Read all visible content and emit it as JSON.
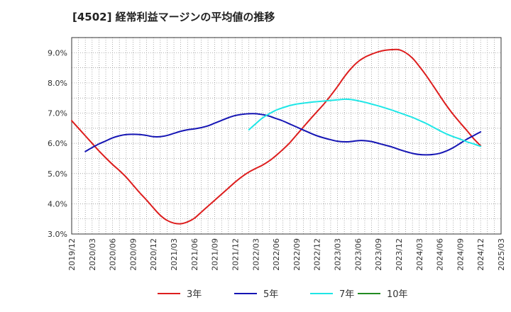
{
  "chart_data": {
    "type": "line",
    "title": "[4502]  経常利益マージンの平均値の推移",
    "y_ticks": [
      "3.0%",
      "4.0%",
      "5.0%",
      "6.0%",
      "7.0%",
      "8.0%",
      "9.0%"
    ],
    "ylim": [
      3.0,
      9.5
    ],
    "x_ticks": [
      "2019/12",
      "2020/03",
      "2020/06",
      "2020/09",
      "2020/12",
      "2021/03",
      "2021/06",
      "2021/09",
      "2021/12",
      "2022/03",
      "2022/06",
      "2022/09",
      "2022/12",
      "2023/03",
      "2023/06",
      "2023/09",
      "2023/12",
      "2024/03",
      "2024/06",
      "2024/09",
      "2024/12",
      "2025/03"
    ],
    "xlim": [
      "2019/12",
      "2025/03"
    ],
    "grid": true,
    "legend_position": "bottom",
    "series": [
      {
        "name": "3年",
        "color": "#dd1e1e",
        "points": [
          [
            "2019/12",
            6.75
          ],
          [
            "2020/01",
            6.5
          ],
          [
            "2020/02",
            6.25
          ],
          [
            "2020/03",
            6.0
          ],
          [
            "2020/04",
            5.75
          ],
          [
            "2020/05",
            5.52
          ],
          [
            "2020/06",
            5.3
          ],
          [
            "2020/07",
            5.1
          ],
          [
            "2020/08",
            4.88
          ],
          [
            "2020/09",
            4.62
          ],
          [
            "2020/10",
            4.36
          ],
          [
            "2020/11",
            4.12
          ],
          [
            "2020/12",
            3.86
          ],
          [
            "2021/01",
            3.62
          ],
          [
            "2021/02",
            3.45
          ],
          [
            "2021/03",
            3.36
          ],
          [
            "2021/04",
            3.34
          ],
          [
            "2021/05",
            3.4
          ],
          [
            "2021/06",
            3.52
          ],
          [
            "2021/07",
            3.72
          ],
          [
            "2021/08",
            3.92
          ],
          [
            "2021/09",
            4.12
          ],
          [
            "2021/10",
            4.32
          ],
          [
            "2021/11",
            4.52
          ],
          [
            "2021/12",
            4.72
          ],
          [
            "2022/01",
            4.9
          ],
          [
            "2022/02",
            5.05
          ],
          [
            "2022/03",
            5.17
          ],
          [
            "2022/04",
            5.28
          ],
          [
            "2022/05",
            5.42
          ],
          [
            "2022/06",
            5.6
          ],
          [
            "2022/07",
            5.8
          ],
          [
            "2022/08",
            6.02
          ],
          [
            "2022/09",
            6.28
          ],
          [
            "2022/10",
            6.54
          ],
          [
            "2022/11",
            6.8
          ],
          [
            "2022/12",
            7.05
          ],
          [
            "2023/01",
            7.3
          ],
          [
            "2023/02",
            7.58
          ],
          [
            "2023/03",
            7.88
          ],
          [
            "2023/04",
            8.2
          ],
          [
            "2023/05",
            8.48
          ],
          [
            "2023/06",
            8.7
          ],
          [
            "2023/07",
            8.85
          ],
          [
            "2023/08",
            8.95
          ],
          [
            "2023/09",
            9.03
          ],
          [
            "2023/10",
            9.08
          ],
          [
            "2023/11",
            9.1
          ],
          [
            "2023/12",
            9.1
          ],
          [
            "2024/01",
            9.0
          ],
          [
            "2024/02",
            8.82
          ],
          [
            "2024/03",
            8.55
          ],
          [
            "2024/04",
            8.25
          ],
          [
            "2024/05",
            7.92
          ],
          [
            "2024/06",
            7.58
          ],
          [
            "2024/07",
            7.25
          ],
          [
            "2024/08",
            6.95
          ],
          [
            "2024/09",
            6.68
          ],
          [
            "2024/10",
            6.42
          ],
          [
            "2024/11",
            6.15
          ],
          [
            "2024/12",
            5.92
          ]
        ]
      },
      {
        "name": "5年",
        "color": "#1515b4",
        "points": [
          [
            "2020/02",
            5.73
          ],
          [
            "2020/03",
            5.86
          ],
          [
            "2020/04",
            5.98
          ],
          [
            "2020/05",
            6.08
          ],
          [
            "2020/06",
            6.18
          ],
          [
            "2020/07",
            6.25
          ],
          [
            "2020/08",
            6.29
          ],
          [
            "2020/09",
            6.3
          ],
          [
            "2020/10",
            6.29
          ],
          [
            "2020/11",
            6.26
          ],
          [
            "2020/12",
            6.22
          ],
          [
            "2021/01",
            6.22
          ],
          [
            "2021/02",
            6.26
          ],
          [
            "2021/03",
            6.33
          ],
          [
            "2021/04",
            6.4
          ],
          [
            "2021/05",
            6.45
          ],
          [
            "2021/06",
            6.48
          ],
          [
            "2021/07",
            6.52
          ],
          [
            "2021/08",
            6.58
          ],
          [
            "2021/09",
            6.67
          ],
          [
            "2021/10",
            6.76
          ],
          [
            "2021/11",
            6.85
          ],
          [
            "2021/12",
            6.92
          ],
          [
            "2022/01",
            6.96
          ],
          [
            "2022/02",
            6.98
          ],
          [
            "2022/03",
            6.98
          ],
          [
            "2022/04",
            6.95
          ],
          [
            "2022/05",
            6.9
          ],
          [
            "2022/06",
            6.82
          ],
          [
            "2022/07",
            6.74
          ],
          [
            "2022/08",
            6.64
          ],
          [
            "2022/09",
            6.54
          ],
          [
            "2022/10",
            6.44
          ],
          [
            "2022/11",
            6.34
          ],
          [
            "2022/12",
            6.25
          ],
          [
            "2023/01",
            6.18
          ],
          [
            "2023/02",
            6.12
          ],
          [
            "2023/03",
            6.07
          ],
          [
            "2023/04",
            6.05
          ],
          [
            "2023/05",
            6.06
          ],
          [
            "2023/06",
            6.09
          ],
          [
            "2023/07",
            6.09
          ],
          [
            "2023/08",
            6.06
          ],
          [
            "2023/09",
            6.0
          ],
          [
            "2023/10",
            5.94
          ],
          [
            "2023/11",
            5.88
          ],
          [
            "2023/12",
            5.8
          ],
          [
            "2024/01",
            5.73
          ],
          [
            "2024/02",
            5.67
          ],
          [
            "2024/03",
            5.63
          ],
          [
            "2024/04",
            5.62
          ],
          [
            "2024/05",
            5.63
          ],
          [
            "2024/06",
            5.67
          ],
          [
            "2024/07",
            5.75
          ],
          [
            "2024/08",
            5.86
          ],
          [
            "2024/09",
            6.0
          ],
          [
            "2024/10",
            6.14
          ],
          [
            "2024/11",
            6.26
          ],
          [
            "2024/12",
            6.38
          ]
        ]
      },
      {
        "name": "7年",
        "color": "#1ee6e6",
        "points": [
          [
            "2022/02",
            6.45
          ],
          [
            "2022/03",
            6.65
          ],
          [
            "2022/04",
            6.84
          ],
          [
            "2022/05",
            6.98
          ],
          [
            "2022/06",
            7.1
          ],
          [
            "2022/07",
            7.18
          ],
          [
            "2022/08",
            7.25
          ],
          [
            "2022/09",
            7.3
          ],
          [
            "2022/10",
            7.33
          ],
          [
            "2022/11",
            7.36
          ],
          [
            "2022/12",
            7.38
          ],
          [
            "2023/01",
            7.4
          ],
          [
            "2023/02",
            7.42
          ],
          [
            "2023/03",
            7.44
          ],
          [
            "2023/04",
            7.46
          ],
          [
            "2023/05",
            7.45
          ],
          [
            "2023/06",
            7.41
          ],
          [
            "2023/07",
            7.36
          ],
          [
            "2023/08",
            7.3
          ],
          [
            "2023/09",
            7.24
          ],
          [
            "2023/10",
            7.17
          ],
          [
            "2023/11",
            7.1
          ],
          [
            "2023/12",
            7.02
          ],
          [
            "2024/01",
            6.94
          ],
          [
            "2024/02",
            6.86
          ],
          [
            "2024/03",
            6.76
          ],
          [
            "2024/04",
            6.66
          ],
          [
            "2024/05",
            6.54
          ],
          [
            "2024/06",
            6.42
          ],
          [
            "2024/07",
            6.31
          ],
          [
            "2024/08",
            6.22
          ],
          [
            "2024/09",
            6.14
          ],
          [
            "2024/10",
            6.05
          ],
          [
            "2024/11",
            5.98
          ],
          [
            "2024/12",
            5.9
          ]
        ]
      },
      {
        "name": "10年",
        "color": "#228b22",
        "points": []
      }
    ]
  }
}
